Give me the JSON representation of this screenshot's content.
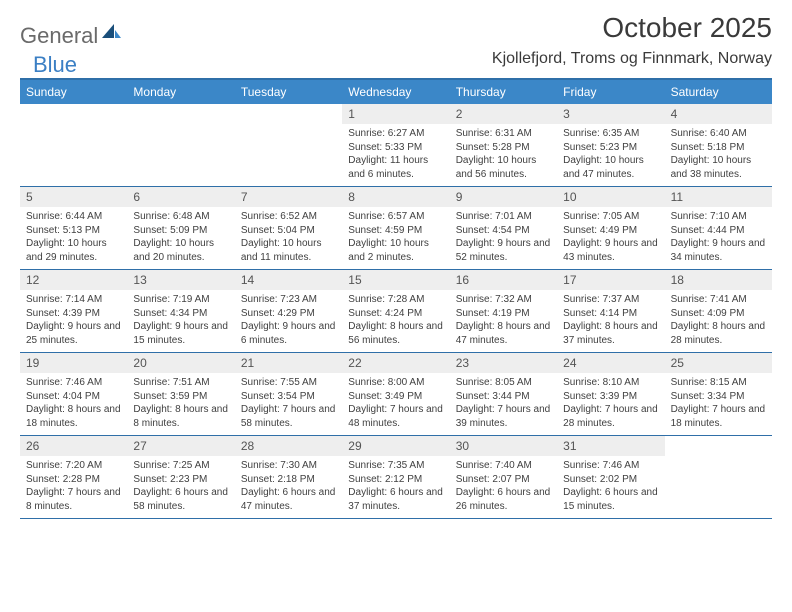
{
  "brand": {
    "general": "General",
    "blue": "Blue"
  },
  "title": {
    "month": "October 2025",
    "location": "Kjollefjord, Troms og Finnmark, Norway"
  },
  "colors": {
    "header_bg": "#3b87c8",
    "header_text": "#ffffff",
    "rule": "#2f6fa8",
    "daynum_bg": "#eeeeee",
    "daynum_text": "#545454",
    "body_text": "#404040",
    "title_text": "#3a3a3a",
    "logo_gray": "#6a6a6a",
    "logo_blue": "#3b7fc4",
    "logo_dark": "#1a4e7a"
  },
  "day_headers": [
    "Sunday",
    "Monday",
    "Tuesday",
    "Wednesday",
    "Thursday",
    "Friday",
    "Saturday"
  ],
  "weeks": [
    [
      {
        "n": "",
        "sr": "",
        "ss": "",
        "dl": "",
        "empty": true
      },
      {
        "n": "",
        "sr": "",
        "ss": "",
        "dl": "",
        "empty": true
      },
      {
        "n": "",
        "sr": "",
        "ss": "",
        "dl": "",
        "empty": true
      },
      {
        "n": "1",
        "sr": "Sunrise: 6:27 AM",
        "ss": "Sunset: 5:33 PM",
        "dl": "Daylight: 11 hours and 6 minutes."
      },
      {
        "n": "2",
        "sr": "Sunrise: 6:31 AM",
        "ss": "Sunset: 5:28 PM",
        "dl": "Daylight: 10 hours and 56 minutes."
      },
      {
        "n": "3",
        "sr": "Sunrise: 6:35 AM",
        "ss": "Sunset: 5:23 PM",
        "dl": "Daylight: 10 hours and 47 minutes."
      },
      {
        "n": "4",
        "sr": "Sunrise: 6:40 AM",
        "ss": "Sunset: 5:18 PM",
        "dl": "Daylight: 10 hours and 38 minutes."
      }
    ],
    [
      {
        "n": "5",
        "sr": "Sunrise: 6:44 AM",
        "ss": "Sunset: 5:13 PM",
        "dl": "Daylight: 10 hours and 29 minutes."
      },
      {
        "n": "6",
        "sr": "Sunrise: 6:48 AM",
        "ss": "Sunset: 5:09 PM",
        "dl": "Daylight: 10 hours and 20 minutes."
      },
      {
        "n": "7",
        "sr": "Sunrise: 6:52 AM",
        "ss": "Sunset: 5:04 PM",
        "dl": "Daylight: 10 hours and 11 minutes."
      },
      {
        "n": "8",
        "sr": "Sunrise: 6:57 AM",
        "ss": "Sunset: 4:59 PM",
        "dl": "Daylight: 10 hours and 2 minutes."
      },
      {
        "n": "9",
        "sr": "Sunrise: 7:01 AM",
        "ss": "Sunset: 4:54 PM",
        "dl": "Daylight: 9 hours and 52 minutes."
      },
      {
        "n": "10",
        "sr": "Sunrise: 7:05 AM",
        "ss": "Sunset: 4:49 PM",
        "dl": "Daylight: 9 hours and 43 minutes."
      },
      {
        "n": "11",
        "sr": "Sunrise: 7:10 AM",
        "ss": "Sunset: 4:44 PM",
        "dl": "Daylight: 9 hours and 34 minutes."
      }
    ],
    [
      {
        "n": "12",
        "sr": "Sunrise: 7:14 AM",
        "ss": "Sunset: 4:39 PM",
        "dl": "Daylight: 9 hours and 25 minutes."
      },
      {
        "n": "13",
        "sr": "Sunrise: 7:19 AM",
        "ss": "Sunset: 4:34 PM",
        "dl": "Daylight: 9 hours and 15 minutes."
      },
      {
        "n": "14",
        "sr": "Sunrise: 7:23 AM",
        "ss": "Sunset: 4:29 PM",
        "dl": "Daylight: 9 hours and 6 minutes."
      },
      {
        "n": "15",
        "sr": "Sunrise: 7:28 AM",
        "ss": "Sunset: 4:24 PM",
        "dl": "Daylight: 8 hours and 56 minutes."
      },
      {
        "n": "16",
        "sr": "Sunrise: 7:32 AM",
        "ss": "Sunset: 4:19 PM",
        "dl": "Daylight: 8 hours and 47 minutes."
      },
      {
        "n": "17",
        "sr": "Sunrise: 7:37 AM",
        "ss": "Sunset: 4:14 PM",
        "dl": "Daylight: 8 hours and 37 minutes."
      },
      {
        "n": "18",
        "sr": "Sunrise: 7:41 AM",
        "ss": "Sunset: 4:09 PM",
        "dl": "Daylight: 8 hours and 28 minutes."
      }
    ],
    [
      {
        "n": "19",
        "sr": "Sunrise: 7:46 AM",
        "ss": "Sunset: 4:04 PM",
        "dl": "Daylight: 8 hours and 18 minutes."
      },
      {
        "n": "20",
        "sr": "Sunrise: 7:51 AM",
        "ss": "Sunset: 3:59 PM",
        "dl": "Daylight: 8 hours and 8 minutes."
      },
      {
        "n": "21",
        "sr": "Sunrise: 7:55 AM",
        "ss": "Sunset: 3:54 PM",
        "dl": "Daylight: 7 hours and 58 minutes."
      },
      {
        "n": "22",
        "sr": "Sunrise: 8:00 AM",
        "ss": "Sunset: 3:49 PM",
        "dl": "Daylight: 7 hours and 48 minutes."
      },
      {
        "n": "23",
        "sr": "Sunrise: 8:05 AM",
        "ss": "Sunset: 3:44 PM",
        "dl": "Daylight: 7 hours and 39 minutes."
      },
      {
        "n": "24",
        "sr": "Sunrise: 8:10 AM",
        "ss": "Sunset: 3:39 PM",
        "dl": "Daylight: 7 hours and 28 minutes."
      },
      {
        "n": "25",
        "sr": "Sunrise: 8:15 AM",
        "ss": "Sunset: 3:34 PM",
        "dl": "Daylight: 7 hours and 18 minutes."
      }
    ],
    [
      {
        "n": "26",
        "sr": "Sunrise: 7:20 AM",
        "ss": "Sunset: 2:28 PM",
        "dl": "Daylight: 7 hours and 8 minutes."
      },
      {
        "n": "27",
        "sr": "Sunrise: 7:25 AM",
        "ss": "Sunset: 2:23 PM",
        "dl": "Daylight: 6 hours and 58 minutes."
      },
      {
        "n": "28",
        "sr": "Sunrise: 7:30 AM",
        "ss": "Sunset: 2:18 PM",
        "dl": "Daylight: 6 hours and 47 minutes."
      },
      {
        "n": "29",
        "sr": "Sunrise: 7:35 AM",
        "ss": "Sunset: 2:12 PM",
        "dl": "Daylight: 6 hours and 37 minutes."
      },
      {
        "n": "30",
        "sr": "Sunrise: 7:40 AM",
        "ss": "Sunset: 2:07 PM",
        "dl": "Daylight: 6 hours and 26 minutes."
      },
      {
        "n": "31",
        "sr": "Sunrise: 7:46 AM",
        "ss": "Sunset: 2:02 PM",
        "dl": "Daylight: 6 hours and 15 minutes."
      },
      {
        "n": "",
        "sr": "",
        "ss": "",
        "dl": "",
        "empty": true
      }
    ]
  ]
}
